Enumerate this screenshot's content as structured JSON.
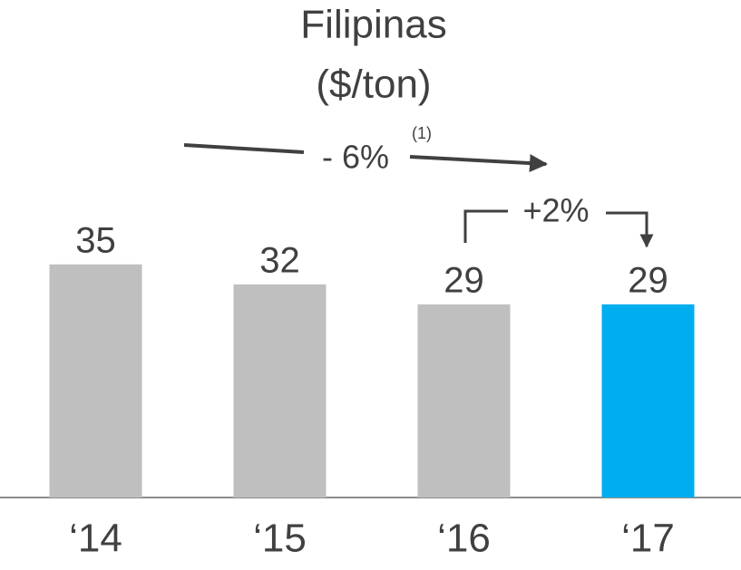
{
  "chart_data": {
    "type": "bar",
    "title": "Filipinas",
    "subtitle": "($/ton)",
    "categories": [
      "‘14",
      "‘15",
      "‘16",
      "‘17"
    ],
    "values": [
      35,
      32,
      29,
      29
    ],
    "colors": [
      "#bfbfbf",
      "#bfbfbf",
      "#bfbfbf",
      "#00aeef"
    ],
    "ylim": [
      0,
      40
    ],
    "annotations": [
      "- 6%",
      "(1)",
      "+2%"
    ]
  }
}
